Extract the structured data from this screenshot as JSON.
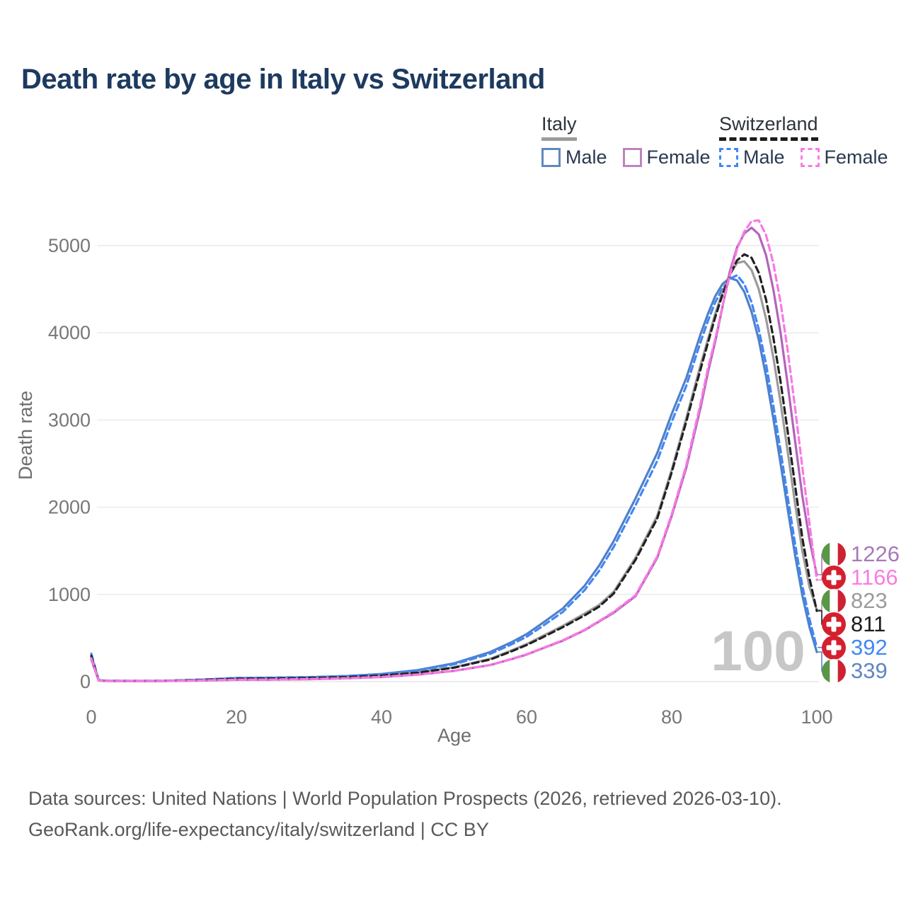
{
  "title": "Death rate by age in Italy vs Switzerland",
  "legend": {
    "groups": [
      {
        "name": "Italy",
        "line_style": "solid",
        "underline_color": "#9b9b9b",
        "items": [
          {
            "label": "Male",
            "color": "#6188bd",
            "dashed": false
          },
          {
            "label": "Female",
            "color": "#bd84bd",
            "dashed": false
          }
        ]
      },
      {
        "name": "Switzerland",
        "line_style": "dashed",
        "underline_color": "#1c1c1c",
        "items": [
          {
            "label": "Male",
            "color": "#4287f5",
            "dashed": true
          },
          {
            "label": "Female",
            "color": "#f97ce1",
            "dashed": true
          }
        ]
      }
    ]
  },
  "chart_data": {
    "type": "line",
    "title": "Death rate by age in Italy vs Switzerland",
    "xlabel": "Age",
    "ylabel": "Death rate",
    "xlim": [
      0,
      100
    ],
    "ylim": [
      0,
      5000
    ],
    "x_ticks": [
      0,
      20,
      40,
      60,
      80,
      100
    ],
    "y_ticks": [
      0,
      1000,
      2000,
      3000,
      4000,
      5000
    ],
    "grid": "horizontal",
    "grid_color": "#e9e9e9",
    "tick_color": "#777777",
    "axis_title_color": "#6e6e6e",
    "age_cursor": "100",
    "age_cursor_color": "#c7c7c7",
    "flag_colors": {
      "italy": [
        "#5a9648",
        "#ffffff",
        "#cc2233"
      ],
      "swiss": [
        "#d4202e",
        "#ffffff"
      ]
    },
    "ages": [
      0,
      1,
      2,
      5,
      10,
      15,
      20,
      25,
      30,
      35,
      40,
      45,
      50,
      55,
      58,
      60,
      62,
      65,
      68,
      70,
      72,
      75,
      78,
      80,
      82,
      84,
      85,
      86,
      87,
      88,
      89,
      90,
      91,
      92,
      93,
      94,
      95,
      96,
      97,
      98,
      99,
      100
    ],
    "series": [
      {
        "name": "Italy Male",
        "country": "Italy",
        "sex": "male",
        "color": "#4f80c9",
        "dashed": false,
        "values": [
          285,
          18,
          10,
          8,
          9,
          22,
          40,
          44,
          50,
          62,
          88,
          132,
          210,
          340,
          455,
          545,
          660,
          840,
          1100,
          1330,
          1610,
          2100,
          2620,
          3070,
          3480,
          3990,
          4220,
          4420,
          4560,
          4630,
          4600,
          4470,
          4240,
          3920,
          3500,
          3020,
          2500,
          1970,
          1450,
          990,
          620,
          339
        ]
      },
      {
        "name": "Switzerland Male",
        "country": "Switzerland",
        "sex": "male",
        "color": "#4287f5",
        "dashed": true,
        "values": [
          320,
          17,
          10,
          8,
          9,
          23,
          42,
          46,
          52,
          64,
          86,
          126,
          198,
          320,
          430,
          515,
          625,
          800,
          1050,
          1270,
          1545,
          2020,
          2530,
          2980,
          3390,
          3900,
          4140,
          4350,
          4510,
          4620,
          4660,
          4560,
          4350,
          4040,
          3640,
          3170,
          2650,
          2110,
          1580,
          1100,
          710,
          392
        ]
      },
      {
        "name": "Italy Total",
        "country": "Italy",
        "sex": "both",
        "color": "#9b9b9b",
        "dashed": false,
        "values": [
          272,
          15,
          9,
          7,
          8,
          17,
          31,
          34,
          39,
          49,
          70,
          105,
          165,
          262,
          360,
          430,
          515,
          640,
          780,
          880,
          1030,
          1420,
          1900,
          2430,
          3020,
          3640,
          3930,
          4220,
          4470,
          4670,
          4800,
          4820,
          4720,
          4500,
          4160,
          3720,
          3200,
          2630,
          2040,
          1500,
          1080,
          823
        ]
      },
      {
        "name": "Switzerland Total",
        "country": "Switzerland",
        "sex": "both",
        "color": "#212121",
        "dashed": true,
        "values": [
          295,
          14,
          9,
          7,
          8,
          18,
          33,
          36,
          41,
          51,
          70,
          103,
          160,
          254,
          350,
          420,
          500,
          625,
          760,
          860,
          1010,
          1395,
          1870,
          2400,
          2980,
          3590,
          3890,
          4180,
          4440,
          4660,
          4830,
          4900,
          4860,
          4690,
          4380,
          3950,
          3440,
          2860,
          2250,
          1650,
          1180,
          811
        ]
      },
      {
        "name": "Italy Female",
        "country": "Italy",
        "sex": "female",
        "color": "#b264bb",
        "dashed": false,
        "values": [
          252,
          13,
          8,
          6,
          7,
          12,
          21,
          23,
          28,
          37,
          53,
          80,
          123,
          190,
          260,
          310,
          375,
          470,
          590,
          690,
          790,
          980,
          1420,
          1900,
          2450,
          3150,
          3550,
          3900,
          4300,
          4700,
          4980,
          5140,
          5205,
          5130,
          4890,
          4500,
          4000,
          3400,
          2760,
          2130,
          1620,
          1226
        ]
      },
      {
        "name": "Switzerland Female",
        "country": "Switzerland",
        "sex": "female",
        "color": "#f979e3",
        "dashed": true,
        "values": [
          268,
          12,
          8,
          6,
          7,
          13,
          22,
          24,
          29,
          38,
          54,
          81,
          124,
          192,
          262,
          313,
          378,
          475,
          595,
          695,
          800,
          990,
          1435,
          1920,
          2480,
          3200,
          3600,
          3930,
          4310,
          4650,
          4960,
          5160,
          5280,
          5290,
          5120,
          4800,
          4350,
          3790,
          3140,
          2460,
          1800,
          1166
        ]
      }
    ],
    "end_labels": [
      {
        "flag": "italy",
        "value": "1226",
        "color": "#a879b9",
        "series": "Italy Female"
      },
      {
        "flag": "swiss",
        "value": "1166",
        "color": "#f97ce1",
        "series": "Switzerland Female"
      },
      {
        "flag": "italy",
        "value": "823",
        "color": "#9b9b9b",
        "series": "Italy Total"
      },
      {
        "flag": "swiss",
        "value": "811",
        "color": "#1c1c1c",
        "series": "Switzerland Total"
      },
      {
        "flag": "swiss",
        "value": "392",
        "color": "#4287f5",
        "series": "Switzerland Male"
      },
      {
        "flag": "italy",
        "value": "339",
        "color": "#5e86c3",
        "series": "Italy Male"
      }
    ]
  },
  "footer": {
    "line1": "Data sources: United Nations | World Population Prospects (2026, retrieved 2026-03-10).",
    "line2": "GeoRank.org/life-expectancy/italy/switzerland | CC BY"
  }
}
